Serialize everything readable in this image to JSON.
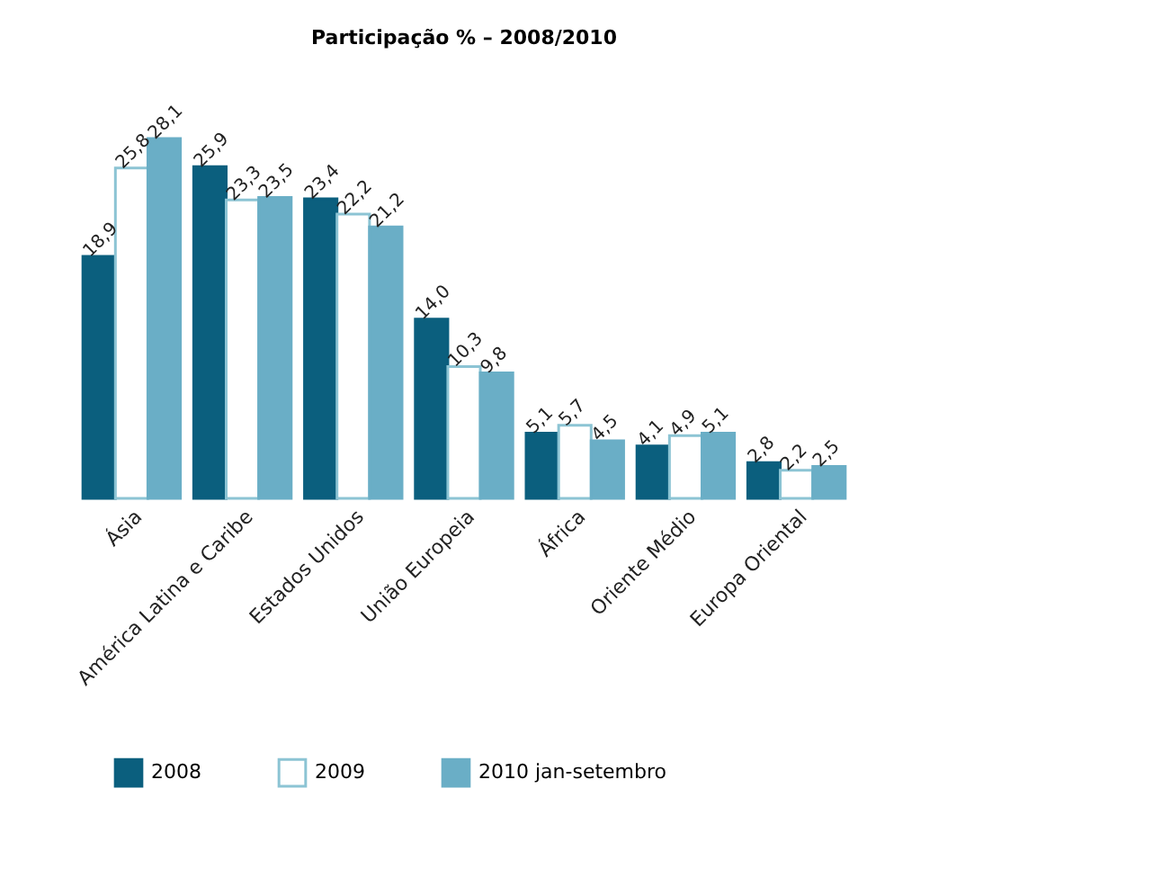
{
  "chart_data": {
    "type": "bar",
    "title": "Participação %  – 2008/2010",
    "categories": [
      "Ásia",
      "América Latina e Caribe",
      "Estados Unidos",
      "União Europeia",
      "África",
      "Oriente Médio",
      "Europa Oriental"
    ],
    "series": [
      {
        "name": "2008",
        "color": "#0b5f7e",
        "values": [
          18.9,
          25.9,
          23.4,
          14.0,
          5.1,
          4.1,
          2.8
        ],
        "value_labels": [
          "18,9",
          "25,9",
          "23,4",
          "14,0",
          "5,1",
          "4,1",
          "2,8"
        ]
      },
      {
        "name": "2009",
        "color": "#ffffff",
        "values": [
          25.8,
          23.3,
          22.2,
          10.3,
          5.7,
          4.9,
          2.2
        ],
        "value_labels": [
          "25,8",
          "23,3",
          "22,2",
          "10,3",
          "5,7",
          "4,9",
          "2,2"
        ]
      },
      {
        "name": "2010 jan-setembro",
        "color": "#6aaec6",
        "values": [
          28.1,
          23.5,
          21.2,
          9.8,
          4.5,
          5.1,
          2.5
        ],
        "value_labels": [
          "28,1",
          "23,5",
          "21,2",
          "9,8",
          "4,5",
          "5,1",
          "2,5"
        ]
      }
    ],
    "tick_labels": "x",
    "legend": "bottom"
  }
}
